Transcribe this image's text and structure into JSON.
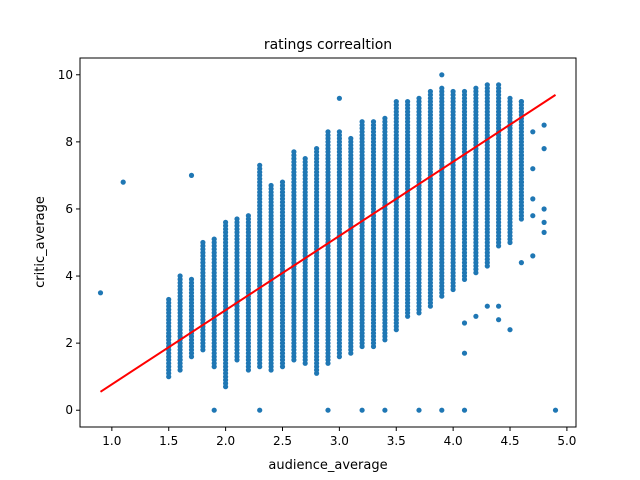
{
  "chart_data": {
    "type": "scatter",
    "title": "ratings correaltion",
    "xlabel": "audience_average",
    "ylabel": "critic_average",
    "xlim": [
      0.72,
      5.08
    ],
    "ylim": [
      -0.5,
      10.5
    ],
    "xticks": [
      1.0,
      1.5,
      2.0,
      2.5,
      3.0,
      3.5,
      4.0,
      4.5,
      5.0
    ],
    "xtick_labels": [
      "1.0",
      "1.5",
      "2.0",
      "2.5",
      "3.0",
      "3.5",
      "4.0",
      "4.5",
      "5.0"
    ],
    "yticks": [
      0,
      2,
      4,
      6,
      8,
      10
    ],
    "ytick_labels": [
      "0",
      "2",
      "4",
      "6",
      "8",
      "10"
    ],
    "grid": false,
    "legend": "none",
    "point_color": "#1f77b4",
    "line_color": "#ff0000",
    "trend_line": {
      "x": [
        0.9,
        4.9
      ],
      "y": [
        0.55,
        9.4
      ]
    },
    "bands": [
      {
        "x": 1.5,
        "ymin": 1.0,
        "ymax": 3.3
      },
      {
        "x": 1.6,
        "ymin": 1.2,
        "ymax": 4.0
      },
      {
        "x": 1.7,
        "ymin": 1.6,
        "ymax": 3.9
      },
      {
        "x": 1.8,
        "ymin": 1.8,
        "ymax": 5.0
      },
      {
        "x": 1.9,
        "ymin": 1.3,
        "ymax": 5.1
      },
      {
        "x": 2.0,
        "ymin": 0.7,
        "ymax": 5.6
      },
      {
        "x": 2.1,
        "ymin": 1.5,
        "ymax": 5.7
      },
      {
        "x": 2.2,
        "ymin": 1.2,
        "ymax": 5.8
      },
      {
        "x": 2.3,
        "ymin": 1.3,
        "ymax": 7.3
      },
      {
        "x": 2.4,
        "ymin": 1.2,
        "ymax": 6.7
      },
      {
        "x": 2.5,
        "ymin": 1.3,
        "ymax": 6.8
      },
      {
        "x": 2.6,
        "ymin": 1.5,
        "ymax": 7.7
      },
      {
        "x": 2.7,
        "ymin": 1.4,
        "ymax": 7.5
      },
      {
        "x": 2.8,
        "ymin": 1.1,
        "ymax": 7.8
      },
      {
        "x": 2.9,
        "ymin": 1.4,
        "ymax": 8.3
      },
      {
        "x": 3.0,
        "ymin": 1.6,
        "ymax": 8.3
      },
      {
        "x": 3.1,
        "ymin": 1.7,
        "ymax": 8.1
      },
      {
        "x": 3.2,
        "ymin": 1.9,
        "ymax": 8.6
      },
      {
        "x": 3.3,
        "ymin": 1.9,
        "ymax": 8.6
      },
      {
        "x": 3.4,
        "ymin": 2.1,
        "ymax": 8.7
      },
      {
        "x": 3.5,
        "ymin": 2.4,
        "ymax": 9.2
      },
      {
        "x": 3.6,
        "ymin": 2.8,
        "ymax": 9.2
      },
      {
        "x": 3.7,
        "ymin": 2.9,
        "ymax": 9.3
      },
      {
        "x": 3.8,
        "ymin": 3.1,
        "ymax": 9.5
      },
      {
        "x": 3.9,
        "ymin": 3.4,
        "ymax": 9.6
      },
      {
        "x": 4.0,
        "ymin": 3.6,
        "ymax": 9.5
      },
      {
        "x": 4.1,
        "ymin": 3.9,
        "ymax": 9.5
      },
      {
        "x": 4.2,
        "ymin": 4.1,
        "ymax": 9.6
      },
      {
        "x": 4.3,
        "ymin": 4.3,
        "ymax": 9.7
      },
      {
        "x": 4.4,
        "ymin": 4.9,
        "ymax": 9.7
      },
      {
        "x": 4.5,
        "ymin": 5.0,
        "ymax": 9.2
      },
      {
        "x": 4.6,
        "ymin": 5.7,
        "ymax": 9.2
      }
    ],
    "outliers": [
      [
        0.9,
        3.5
      ],
      [
        1.1,
        6.8
      ],
      [
        1.7,
        7.0
      ],
      [
        1.5,
        2.2
      ],
      [
        1.6,
        1.5
      ],
      [
        1.9,
        0.0
      ],
      [
        2.3,
        0.0
      ],
      [
        2.9,
        0.0
      ],
      [
        3.2,
        0.0
      ],
      [
        3.4,
        0.0
      ],
      [
        3.7,
        0.0
      ],
      [
        3.9,
        0.0
      ],
      [
        4.1,
        0.0
      ],
      [
        4.9,
        0.0
      ],
      [
        4.1,
        1.7
      ],
      [
        4.5,
        2.4
      ],
      [
        4.2,
        2.8
      ],
      [
        4.3,
        3.1
      ],
      [
        4.4,
        3.1
      ],
      [
        4.6,
        4.4
      ],
      [
        4.7,
        4.6
      ],
      [
        4.8,
        5.3
      ],
      [
        4.8,
        5.6
      ],
      [
        4.8,
        6.0
      ],
      [
        4.7,
        6.3
      ],
      [
        4.6,
        6.8
      ],
      [
        4.7,
        7.2
      ],
      [
        4.8,
        7.8
      ],
      [
        4.7,
        8.3
      ],
      [
        4.8,
        8.5
      ],
      [
        4.6,
        8.9
      ],
      [
        4.6,
        9.2
      ],
      [
        4.5,
        9.3
      ],
      [
        4.1,
        2.6
      ],
      [
        4.4,
        2.7
      ],
      [
        3.9,
        10.0
      ],
      [
        3.0,
        9.3
      ],
      [
        4.6,
        7.6
      ],
      [
        4.7,
        5.8
      ]
    ]
  }
}
